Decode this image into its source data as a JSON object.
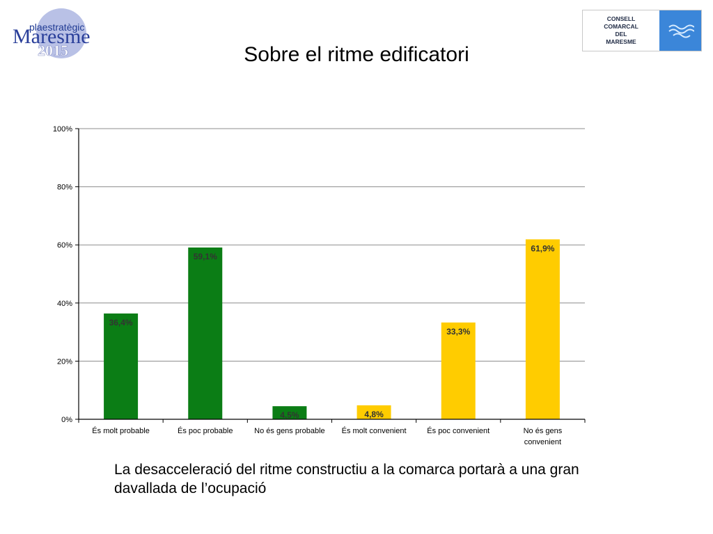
{
  "header": {
    "logo_left_small": "plaestratègic",
    "logo_left_main": "Maresme",
    "logo_left_year": "2015",
    "logo_right_lines": [
      "CONSELL",
      "COMARCAL",
      "DEL",
      "MARESME"
    ]
  },
  "title": "Sobre el ritme edificatori",
  "caption": "La desacceleració del ritme constructiu a la comarca portarà a una gran davallada de l’ocupació",
  "colors": {
    "green": "#0b7d15",
    "yellow": "#ffcc00",
    "grid": "#8c8c8c",
    "axis": "#000000"
  },
  "chart_data": {
    "type": "bar",
    "title": "Sobre el ritme edificatori",
    "categories": [
      [
        "És molt probable"
      ],
      [
        "És poc probable"
      ],
      [
        "No és gens probable"
      ],
      [
        "És molt convenient"
      ],
      [
        "És poc convenient"
      ],
      [
        "No és gens",
        "convenient"
      ]
    ],
    "values": [
      36.4,
      59.1,
      4.5,
      4.8,
      33.3,
      61.9
    ],
    "labels": [
      "36,4%",
      "59,1%",
      "4,5%",
      "4,8%",
      "33,3%",
      "61,9%"
    ],
    "bar_colors": [
      "#0b7d15",
      "#0b7d15",
      "#0b7d15",
      "#ffcc00",
      "#ffcc00",
      "#ffcc00"
    ],
    "yticks": [
      {
        "value": 0,
        "label": "0%"
      },
      {
        "value": 20,
        "label": "20%"
      },
      {
        "value": 40,
        "label": "40%"
      },
      {
        "value": 60,
        "label": "60%"
      },
      {
        "value": 80,
        "label": "80%"
      },
      {
        "value": 100,
        "label": "100%"
      }
    ],
    "ylim": [
      0,
      100
    ],
    "grid": true,
    "legend": "none"
  }
}
